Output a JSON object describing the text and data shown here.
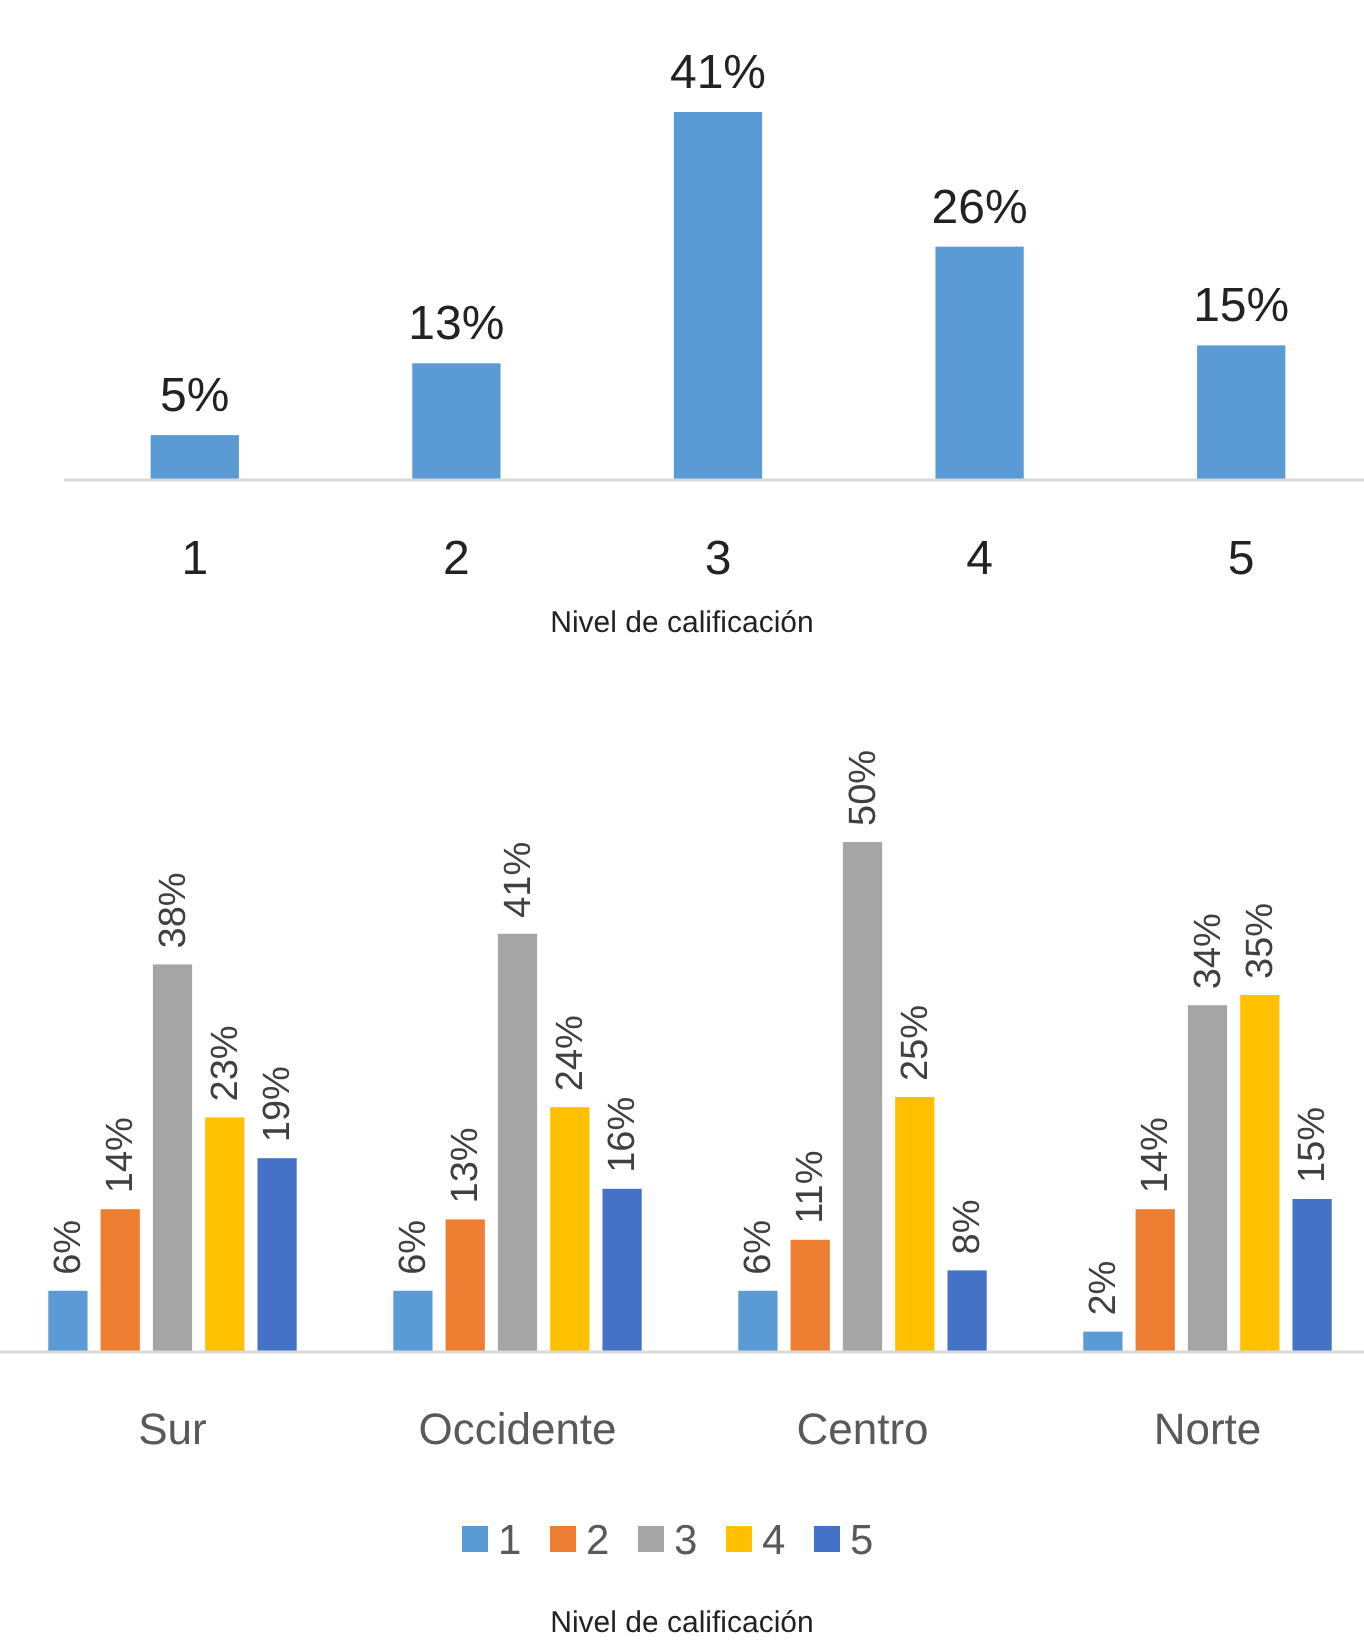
{
  "chart_data": [
    {
      "type": "bar",
      "xlabel": "Nivel de calificación",
      "categories": [
        "1",
        "2",
        "3",
        "4",
        "5"
      ],
      "values": [
        5,
        13,
        41,
        26,
        15
      ],
      "value_labels": [
        "5%",
        "13%",
        "41%",
        "26%",
        "15%"
      ],
      "color": "#5b9bd5",
      "legend": false
    },
    {
      "type": "bar",
      "legend_title": "Nivel de calificación",
      "categories": [
        "Sur",
        "Occidente",
        "Centro",
        "Norte"
      ],
      "legend": "bottom",
      "series": [
        {
          "name": "1",
          "color": "#5b9bd5",
          "values": [
            6,
            6,
            6,
            2
          ],
          "value_labels": [
            "6%",
            "6%",
            "6%",
            "2%"
          ]
        },
        {
          "name": "2",
          "color": "#ed7d31",
          "values": [
            14,
            13,
            11,
            14
          ],
          "value_labels": [
            "14%",
            "13%",
            "11%",
            "14%"
          ]
        },
        {
          "name": "3",
          "color": "#a5a5a5",
          "values": [
            38,
            41,
            50,
            34
          ],
          "value_labels": [
            "38%",
            "41%",
            "50%",
            "34%"
          ]
        },
        {
          "name": "4",
          "color": "#ffc000",
          "values": [
            23,
            24,
            25,
            35
          ],
          "value_labels": [
            "23%",
            "24%",
            "25%",
            "35%"
          ]
        },
        {
          "name": "5",
          "color": "#4472c4",
          "values": [
            19,
            16,
            8,
            15
          ],
          "value_labels": [
            "19%",
            "16%",
            "8%",
            "15%"
          ]
        }
      ]
    }
  ]
}
